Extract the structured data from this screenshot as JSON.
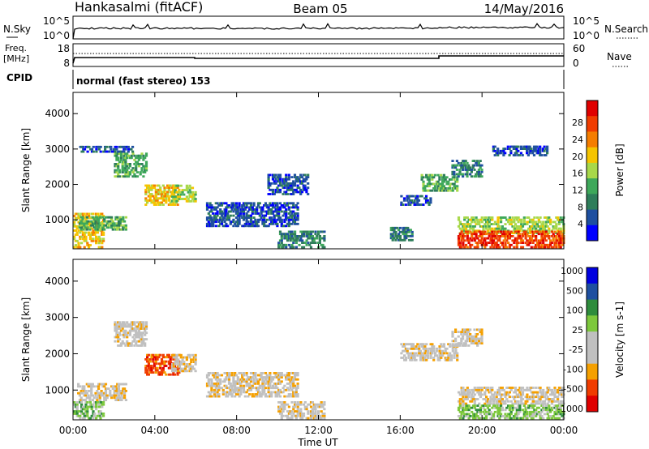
{
  "header": {
    "station": "Hankasalmi (fitACF)",
    "beam": "Beam 05",
    "date": "14/May/2016"
  },
  "panels": {
    "nsky": {
      "label": "N.Sky",
      "tick_top": "10^5",
      "tick_bottom": "10^0",
      "right_label": "N.Search",
      "right_tick_top": "10^5",
      "right_tick_bottom": "10^0"
    },
    "freq": {
      "label_line1": "Freq.",
      "label_line2": "[MHz]",
      "tick_top": "18",
      "tick_bottom": "8",
      "right_label": "Nave",
      "right_tick_top": "60",
      "right_tick_bottom": "0"
    },
    "cpid": {
      "label": "CPID",
      "text": "normal (fast stereo) 153"
    }
  },
  "colors": {
    "power": [
      "#0000ff",
      "#1e4fa0",
      "#2e7d5a",
      "#3ea85a",
      "#a8d84a",
      "#f5c400",
      "#f57d00",
      "#f03c00",
      "#e00000"
    ],
    "velocity": [
      "#e00000",
      "#f03c00",
      "#f5a000",
      "#c0c0c0",
      "#c0c0c0",
      "#7dc83c",
      "#2e8c3c",
      "#1e4fa0",
      "#0000e0"
    ]
  },
  "chart_data": [
    {
      "type": "heatmap",
      "title": "",
      "ylabel": "Slant Range [km]",
      "xlabel": "Time UT",
      "x_ticks": [
        "00:00",
        "04:00",
        "08:00",
        "12:00",
        "16:00",
        "20:00",
        "00:00"
      ],
      "y_ticks": [
        "1000",
        "2000",
        "3000",
        "4000"
      ],
      "ylim": [
        180,
        4600
      ],
      "xlim_hours": [
        0,
        24
      ],
      "colorbar_label": "Power [dB]",
      "colorbar_ticks": [
        "4",
        "8",
        "12",
        "16",
        "20",
        "24",
        "28"
      ],
      "regions": [
        {
          "t0": 0.0,
          "t1": 1.5,
          "r0": 200,
          "r1": 1200,
          "level": 5
        },
        {
          "t0": 0.2,
          "t1": 2.6,
          "r0": 700,
          "r1": 1100,
          "level": 3
        },
        {
          "t0": 2.0,
          "t1": 3.6,
          "r0": 2200,
          "r1": 2900,
          "level": 3
        },
        {
          "t0": 3.5,
          "t1": 5.2,
          "r0": 1400,
          "r1": 2000,
          "level": 5
        },
        {
          "t0": 4.8,
          "t1": 6.0,
          "r0": 1500,
          "r1": 2000,
          "level": 4
        },
        {
          "t0": 0.3,
          "t1": 3.0,
          "r0": 2900,
          "r1": 3100,
          "level": 1
        },
        {
          "t0": 6.5,
          "t1": 11.0,
          "r0": 800,
          "r1": 1500,
          "level": 1
        },
        {
          "t0": 10.0,
          "t1": 12.3,
          "r0": 200,
          "r1": 700,
          "level": 2
        },
        {
          "t0": 9.5,
          "t1": 11.5,
          "r0": 1700,
          "r1": 2300,
          "level": 1
        },
        {
          "t0": 15.5,
          "t1": 16.6,
          "r0": 400,
          "r1": 800,
          "level": 2
        },
        {
          "t0": 16.0,
          "t1": 17.5,
          "r0": 1400,
          "r1": 1700,
          "level": 1
        },
        {
          "t0": 17.0,
          "t1": 18.8,
          "r0": 1800,
          "r1": 2300,
          "level": 3
        },
        {
          "t0": 18.5,
          "t1": 20.0,
          "r0": 2200,
          "r1": 2700,
          "level": 2
        },
        {
          "t0": 20.5,
          "t1": 23.2,
          "r0": 2800,
          "r1": 3100,
          "level": 1
        },
        {
          "t0": 18.8,
          "t1": 24.0,
          "r0": 600,
          "r1": 1100,
          "level": 4
        },
        {
          "t0": 18.8,
          "t1": 24.0,
          "r0": 200,
          "r1": 700,
          "level": 7
        }
      ]
    },
    {
      "type": "heatmap",
      "title": "",
      "ylabel": "Slant Range [km]",
      "xlabel": "Time UT",
      "x_ticks": [
        "00:00",
        "04:00",
        "08:00",
        "12:00",
        "16:00",
        "20:00",
        "00:00"
      ],
      "y_ticks": [
        "1000",
        "2000",
        "3000",
        "4000"
      ],
      "ylim": [
        180,
        4600
      ],
      "xlim_hours": [
        0,
        24
      ],
      "colorbar_label": "Velocity [m s-1]",
      "colorbar_ticks": [
        "1000",
        "500",
        "100",
        "25",
        "-25",
        "-100",
        "-500",
        "-1000"
      ],
      "regions": [
        {
          "t0": 0.0,
          "t1": 1.5,
          "r0": 200,
          "r1": 700,
          "level": 5
        },
        {
          "t0": 0.2,
          "t1": 2.6,
          "r0": 700,
          "r1": 1200,
          "level": 3
        },
        {
          "t0": 2.0,
          "t1": 3.6,
          "r0": 2200,
          "r1": 2900,
          "level": 3
        },
        {
          "t0": 3.5,
          "t1": 5.2,
          "r0": 1400,
          "r1": 2000,
          "level": 1
        },
        {
          "t0": 4.8,
          "t1": 6.0,
          "r0": 1500,
          "r1": 2000,
          "level": 3
        },
        {
          "t0": 6.5,
          "t1": 11.0,
          "r0": 800,
          "r1": 1500,
          "level": 3
        },
        {
          "t0": 10.0,
          "t1": 12.3,
          "r0": 200,
          "r1": 700,
          "level": 3
        },
        {
          "t0": 16.0,
          "t1": 18.8,
          "r0": 1800,
          "r1": 2300,
          "level": 3
        },
        {
          "t0": 18.5,
          "t1": 20.0,
          "r0": 2200,
          "r1": 2700,
          "level": 3
        },
        {
          "t0": 18.8,
          "t1": 24.0,
          "r0": 600,
          "r1": 1100,
          "level": 3
        },
        {
          "t0": 18.8,
          "t1": 24.0,
          "r0": 200,
          "r1": 600,
          "level": 5
        }
      ]
    }
  ]
}
